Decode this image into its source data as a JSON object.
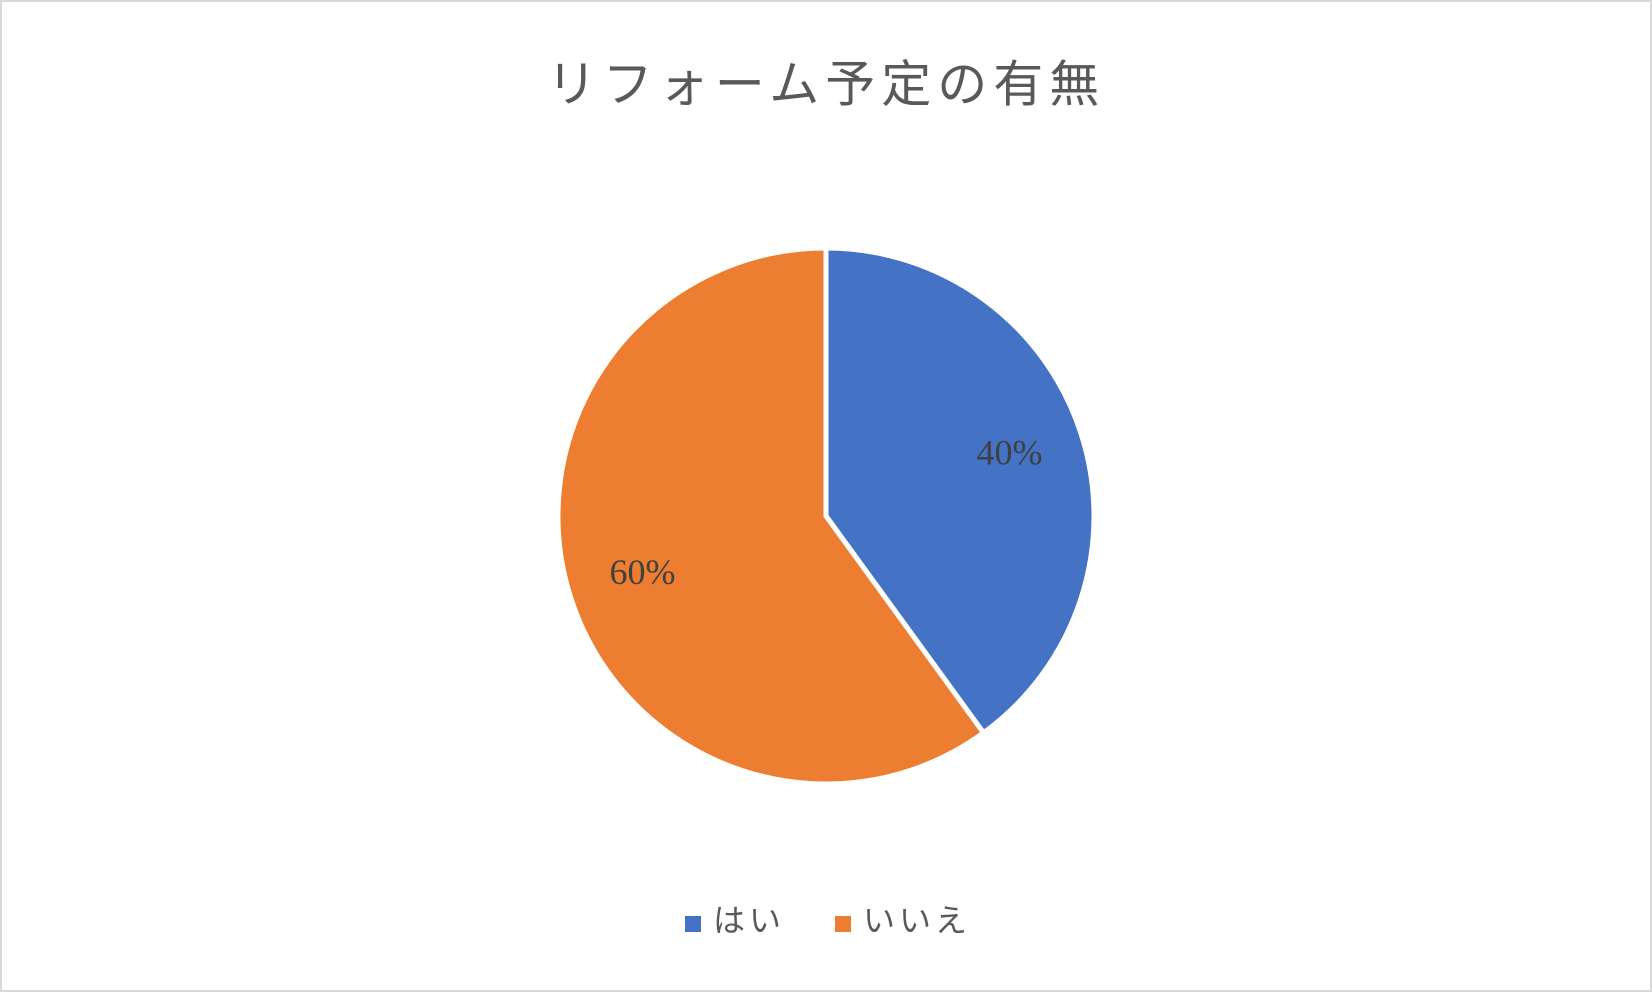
{
  "chart_data": {
    "type": "pie",
    "title": "リフォーム予定の有無",
    "categories": [
      "はい",
      "いいえ"
    ],
    "values": [
      40,
      60
    ],
    "value_labels": [
      "40%",
      "60%"
    ],
    "colors": [
      "#4472c4",
      "#ed7d31"
    ],
    "legend": "bottom"
  }
}
